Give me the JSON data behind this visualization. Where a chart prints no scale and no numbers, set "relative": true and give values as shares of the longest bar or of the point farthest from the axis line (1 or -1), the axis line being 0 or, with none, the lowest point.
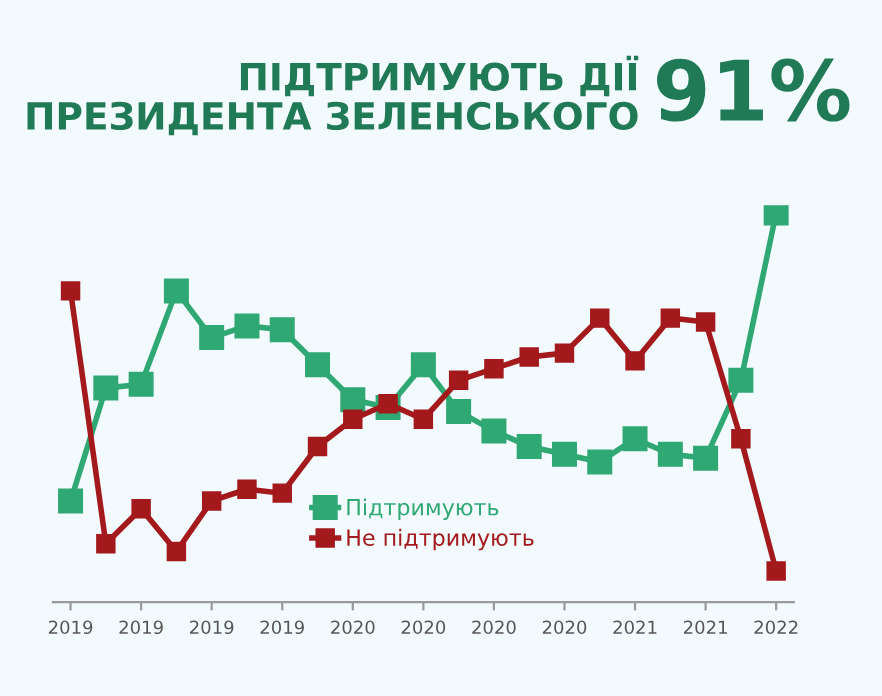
{
  "chart_data": {
    "type": "line",
    "title": "ПІДТРИМУЮТЬ ДІЇ\nПРЕЗИДЕНТА ЗЕЛЕНСЬКОГО",
    "annotations": [
      "91%"
    ],
    "relative": true,
    "categories": [
      "2019",
      null,
      "2019",
      null,
      "2019",
      null,
      "2019",
      null,
      "2020",
      null,
      "2020",
      null,
      "2020",
      null,
      "2020",
      null,
      "2021",
      null,
      "2021",
      null,
      "2022"
    ],
    "series": [
      {
        "name": "Підтримують",
        "color": "#2fa874",
        "values": [
          0.26,
          0.55,
          0.56,
          0.8,
          0.68,
          0.71,
          0.7,
          0.61,
          0.52,
          0.5,
          0.61,
          0.49,
          0.44,
          0.4,
          0.38,
          0.36,
          0.42,
          0.38,
          0.37,
          0.57,
          1
        ]
      },
      {
        "name": "Не підтримують",
        "color": "#a3191c",
        "values": [
          0.8,
          0.15,
          0.24,
          0.13,
          0.26,
          0.29,
          0.28,
          0.4,
          0.47,
          0.51,
          0.47,
          0.57,
          0.6,
          0.63,
          0.64,
          0.73,
          0.62,
          0.73,
          0.72,
          0.42,
          0.08
        ]
      }
    ],
    "marker": "square",
    "line_style": "solid",
    "legend": "bottom",
    "grid": false
  }
}
